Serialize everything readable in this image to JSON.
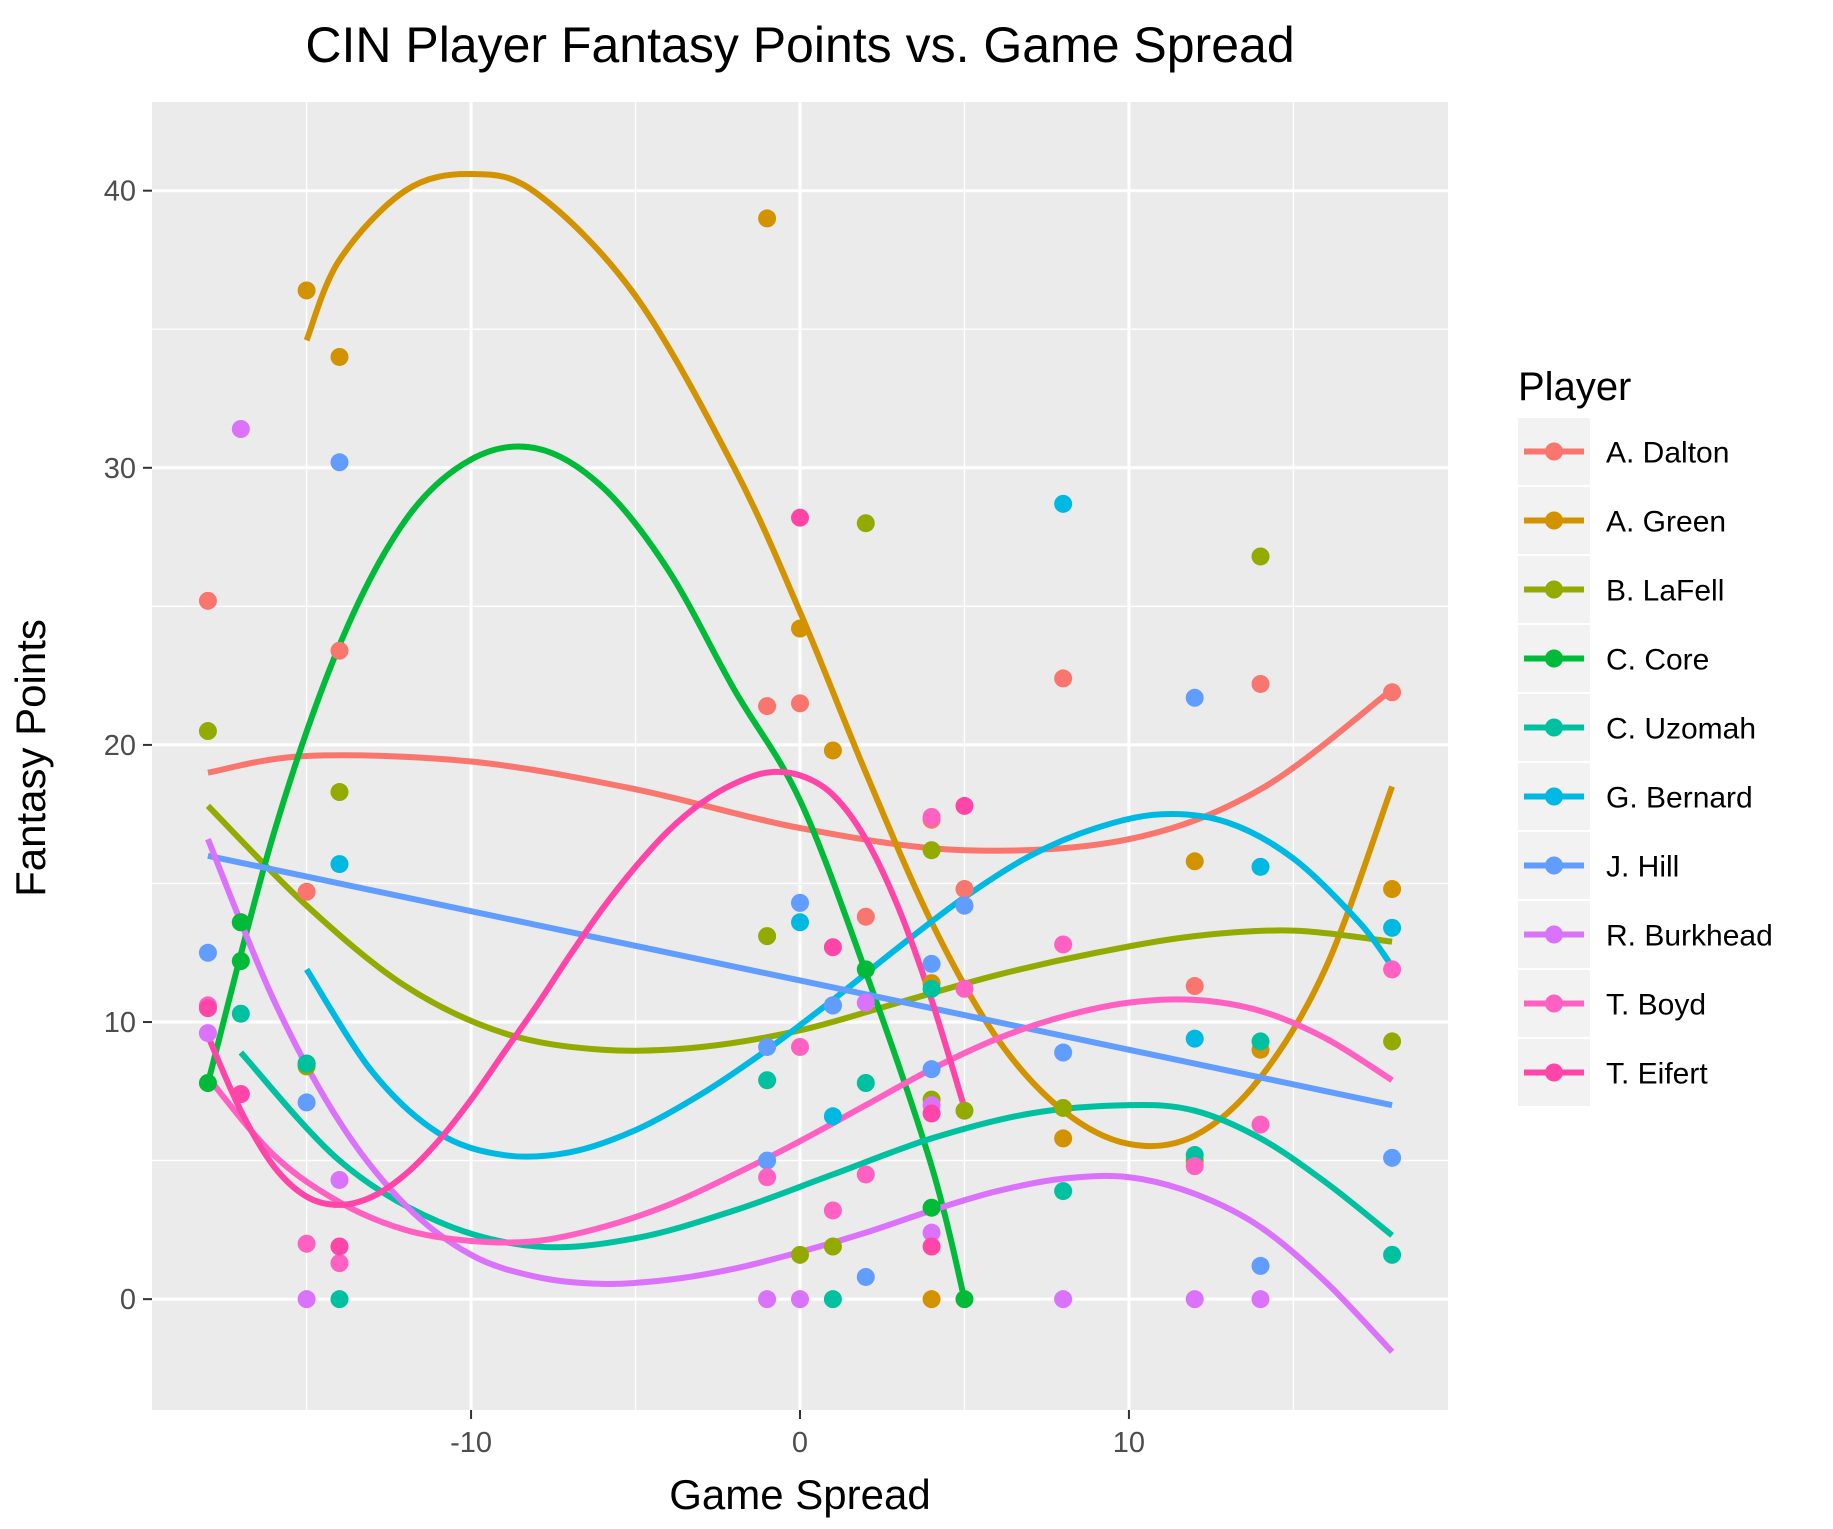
{
  "chart_data": {
    "type": "scatter",
    "title": "CIN Player Fantasy Points vs. Game Spread",
    "xlabel": "Game Spread",
    "ylabel": "Fantasy Points",
    "xlim": [
      -19.7,
      19.7
    ],
    "ylim": [
      -4,
      43.2
    ],
    "x_ticks": [
      -10,
      0,
      10
    ],
    "y_ticks": [
      0,
      10,
      20,
      30,
      40
    ],
    "x_tick_labels": [
      "-10",
      "0",
      "10"
    ],
    "y_tick_labels": [
      "0",
      "10",
      "20",
      "30",
      "40"
    ],
    "grid": true,
    "legend_title": "Player",
    "legend_position": "right",
    "series": [
      {
        "name": "A. Dalton",
        "color": "#F8766D",
        "points": [
          [
            -18,
            25.2
          ],
          [
            -17,
            13.6
          ],
          [
            -15,
            14.7
          ],
          [
            -14,
            23.4
          ],
          [
            -1,
            21.4
          ],
          [
            0,
            21.5
          ],
          [
            2,
            13.8
          ],
          [
            4,
            17.3
          ],
          [
            4,
            11.4
          ],
          [
            5,
            14.8
          ],
          [
            8,
            22.4
          ],
          [
            12,
            11.3
          ],
          [
            14,
            22.2
          ],
          [
            18,
            21.9
          ]
        ],
        "curve": [
          [
            -18,
            19.0
          ],
          [
            -15,
            19.6
          ],
          [
            -10,
            19.4
          ],
          [
            -5,
            18.4
          ],
          [
            0,
            17.0
          ],
          [
            5,
            16.2
          ],
          [
            10,
            16.6
          ],
          [
            14,
            18.4
          ],
          [
            18,
            22.0
          ]
        ]
      },
      {
        "name": "A. Green",
        "color": "#D39200",
        "points": [
          [
            -15,
            36.4
          ],
          [
            -14,
            34.0
          ],
          [
            -1,
            39.0
          ],
          [
            0,
            24.2
          ],
          [
            1,
            19.8
          ],
          [
            4,
            0
          ],
          [
            4,
            11.4
          ],
          [
            8,
            5.8
          ],
          [
            12,
            15.8
          ],
          [
            14,
            9.0
          ],
          [
            18,
            14.8
          ]
        ],
        "curve": [
          [
            -15,
            34.6
          ],
          [
            -14,
            37.5
          ],
          [
            -12,
            40.0
          ],
          [
            -10,
            40.6
          ],
          [
            -8,
            39.9
          ],
          [
            -5,
            36.2
          ],
          [
            -2,
            30.0
          ],
          [
            0,
            24.8
          ],
          [
            2,
            19.0
          ],
          [
            4,
            13.6
          ],
          [
            6,
            9.4
          ],
          [
            8,
            6.8
          ],
          [
            10,
            5.6
          ],
          [
            12,
            5.9
          ],
          [
            14,
            8.0
          ],
          [
            16,
            12.0
          ],
          [
            18,
            18.5
          ]
        ]
      },
      {
        "name": "B. LaFell",
        "color": "#93AA00",
        "points": [
          [
            -18,
            20.5
          ],
          [
            -14,
            18.3
          ],
          [
            -15,
            8.4
          ],
          [
            -1,
            13.1
          ],
          [
            0,
            1.6
          ],
          [
            1,
            1.9
          ],
          [
            2,
            28.0
          ],
          [
            4,
            16.2
          ],
          [
            4,
            7.2
          ],
          [
            5,
            6.8
          ],
          [
            8,
            6.9
          ],
          [
            12,
            5.0
          ],
          [
            14,
            26.8
          ],
          [
            18,
            9.3
          ]
        ],
        "curve": [
          [
            -18,
            17.8
          ],
          [
            -15,
            14.2
          ],
          [
            -12,
            11.3
          ],
          [
            -9,
            9.6
          ],
          [
            -6,
            9.0
          ],
          [
            -3,
            9.1
          ],
          [
            0,
            9.7
          ],
          [
            3,
            10.7
          ],
          [
            6,
            11.7
          ],
          [
            9,
            12.5
          ],
          [
            12,
            13.1
          ],
          [
            15,
            13.3
          ],
          [
            18,
            12.9
          ]
        ]
      },
      {
        "name": "C. Core",
        "color": "#00BA38",
        "points": [
          [
            -18,
            7.8
          ],
          [
            -17,
            12.2
          ],
          [
            -17,
            13.6
          ],
          [
            -15,
            8.5
          ],
          [
            2,
            11.9
          ],
          [
            4,
            3.3
          ],
          [
            5,
            0
          ]
        ],
        "curve": [
          [
            -18,
            7.8
          ],
          [
            -16,
            16.8
          ],
          [
            -14,
            23.6
          ],
          [
            -12,
            28.1
          ],
          [
            -10,
            30.3
          ],
          [
            -8,
            30.7
          ],
          [
            -6,
            29.3
          ],
          [
            -4,
            26.3
          ],
          [
            -2,
            22.0
          ],
          [
            0,
            18.0
          ],
          [
            2,
            11.8
          ],
          [
            4,
            4.8
          ],
          [
            5,
            0
          ]
        ]
      },
      {
        "name": "C. Uzomah",
        "color": "#00C19F",
        "points": [
          [
            -17,
            10.3
          ],
          [
            -15,
            8.5
          ],
          [
            -14,
            0
          ],
          [
            -1,
            7.9
          ],
          [
            1,
            0
          ],
          [
            2,
            7.8
          ],
          [
            4,
            11.2
          ],
          [
            8,
            3.9
          ],
          [
            12,
            5.2
          ],
          [
            14,
            9.3
          ],
          [
            18,
            1.6
          ]
        ],
        "curve": [
          [
            -17,
            8.9
          ],
          [
            -14,
            5.0
          ],
          [
            -11,
            2.8
          ],
          [
            -8,
            1.9
          ],
          [
            -5,
            2.2
          ],
          [
            -2,
            3.2
          ],
          [
            1,
            4.5
          ],
          [
            4,
            5.8
          ],
          [
            7,
            6.7
          ],
          [
            10,
            7.0
          ],
          [
            12,
            6.8
          ],
          [
            14,
            5.8
          ],
          [
            16,
            4.2
          ],
          [
            18,
            2.3
          ]
        ]
      },
      {
        "name": "G. Bernard",
        "color": "#00B9E3",
        "points": [
          [
            -14,
            15.7
          ],
          [
            0,
            13.6
          ],
          [
            1,
            6.6
          ],
          [
            1,
            10.6
          ],
          [
            8,
            28.7
          ],
          [
            12,
            9.4
          ],
          [
            14,
            15.6
          ],
          [
            18,
            13.4
          ]
        ],
        "curve": [
          [
            -15,
            11.9
          ],
          [
            -13,
            8.2
          ],
          [
            -11,
            6.0
          ],
          [
            -9,
            5.2
          ],
          [
            -7,
            5.3
          ],
          [
            -5,
            6.1
          ],
          [
            -3,
            7.4
          ],
          [
            -1,
            9.0
          ],
          [
            1,
            10.8
          ],
          [
            3,
            12.7
          ],
          [
            5,
            14.5
          ],
          [
            7,
            16.0
          ],
          [
            9,
            17.0
          ],
          [
            11,
            17.5
          ],
          [
            13,
            17.2
          ],
          [
            15,
            15.9
          ],
          [
            17,
            13.6
          ],
          [
            18,
            12.0
          ]
        ]
      },
      {
        "name": "J. Hill",
        "color": "#619CFF",
        "points": [
          [
            -18,
            12.5
          ],
          [
            -15,
            7.1
          ],
          [
            -14,
            30.2
          ],
          [
            -1,
            9.1
          ],
          [
            -1,
            5.0
          ],
          [
            0,
            14.3
          ],
          [
            1,
            10.6
          ],
          [
            2,
            0.8
          ],
          [
            4,
            12.1
          ],
          [
            4,
            8.3
          ],
          [
            5,
            14.2
          ],
          [
            8,
            8.9
          ],
          [
            12,
            21.7
          ],
          [
            14,
            1.2
          ],
          [
            18,
            5.1
          ]
        ],
        "curve": [
          [
            -18,
            16.0
          ],
          [
            18,
            7.0
          ]
        ]
      },
      {
        "name": "R. Burkhead",
        "color": "#DB72FB",
        "points": [
          [
            -17,
            31.4
          ],
          [
            -18,
            9.6
          ],
          [
            -15,
            0
          ],
          [
            -14,
            4.3
          ],
          [
            -1,
            0
          ],
          [
            0,
            0
          ],
          [
            2,
            10.7
          ],
          [
            4,
            7.0
          ],
          [
            4,
            2.4
          ],
          [
            8,
            0
          ],
          [
            12,
            0
          ],
          [
            14,
            0
          ]
        ],
        "curve": [
          [
            -18,
            16.6
          ],
          [
            -16,
            10.8
          ],
          [
            -14,
            6.4
          ],
          [
            -12,
            3.4
          ],
          [
            -10,
            1.6
          ],
          [
            -8,
            0.8
          ],
          [
            -6,
            0.55
          ],
          [
            -4,
            0.7
          ],
          [
            -2,
            1.1
          ],
          [
            0,
            1.7
          ],
          [
            2,
            2.4
          ],
          [
            4,
            3.2
          ],
          [
            6,
            3.9
          ],
          [
            8,
            4.35
          ],
          [
            10,
            4.4
          ],
          [
            12,
            3.8
          ],
          [
            14,
            2.6
          ],
          [
            16,
            0.6
          ],
          [
            18,
            -1.9
          ]
        ]
      },
      {
        "name": "T. Boyd",
        "color": "#FF61C3",
        "points": [
          [
            -18,
            10.6
          ],
          [
            -17,
            7.4
          ],
          [
            -15,
            2.0
          ],
          [
            -14,
            1.3
          ],
          [
            -1,
            4.4
          ],
          [
            0,
            9.1
          ],
          [
            1,
            3.2
          ],
          [
            2,
            4.5
          ],
          [
            4,
            17.4
          ],
          [
            5,
            11.2
          ],
          [
            8,
            12.8
          ],
          [
            12,
            4.8
          ],
          [
            14,
            6.3
          ],
          [
            18,
            11.9
          ]
        ],
        "curve": [
          [
            -18,
            8.0
          ],
          [
            -16,
            5.2
          ],
          [
            -14,
            3.5
          ],
          [
            -12,
            2.5
          ],
          [
            -10,
            2.1
          ],
          [
            -8,
            2.1
          ],
          [
            -6,
            2.6
          ],
          [
            -4,
            3.4
          ],
          [
            -2,
            4.5
          ],
          [
            0,
            5.7
          ],
          [
            2,
            7.0
          ],
          [
            4,
            8.3
          ],
          [
            6,
            9.4
          ],
          [
            8,
            10.2
          ],
          [
            10,
            10.7
          ],
          [
            12,
            10.8
          ],
          [
            14,
            10.4
          ],
          [
            16,
            9.4
          ],
          [
            18,
            7.9
          ]
        ]
      },
      {
        "name": "T. Eifert",
        "color": "#FF45A8",
        "points": [
          [
            -18,
            10.5
          ],
          [
            -17,
            7.4
          ],
          [
            -14,
            1.9
          ],
          [
            0,
            28.2
          ],
          [
            1,
            12.7
          ],
          [
            4,
            6.7
          ],
          [
            4,
            1.9
          ],
          [
            5,
            17.8
          ]
        ],
        "curve": [
          [
            -18,
            9.5
          ],
          [
            -17,
            6.8
          ],
          [
            -16,
            4.8
          ],
          [
            -15,
            3.7
          ],
          [
            -14,
            3.4
          ],
          [
            -13,
            3.7
          ],
          [
            -12,
            4.5
          ],
          [
            -11,
            5.7
          ],
          [
            -10,
            7.2
          ],
          [
            -9,
            8.9
          ],
          [
            -8,
            10.6
          ],
          [
            -7,
            12.4
          ],
          [
            -6,
            14.1
          ],
          [
            -5,
            15.6
          ],
          [
            -4,
            16.9
          ],
          [
            -3,
            17.9
          ],
          [
            -2,
            18.6
          ],
          [
            -1,
            19.0
          ],
          [
            0,
            18.9
          ],
          [
            1,
            18.2
          ],
          [
            2,
            16.6
          ],
          [
            3,
            14.1
          ],
          [
            4,
            10.8
          ],
          [
            5,
            6.9
          ]
        ]
      }
    ]
  }
}
